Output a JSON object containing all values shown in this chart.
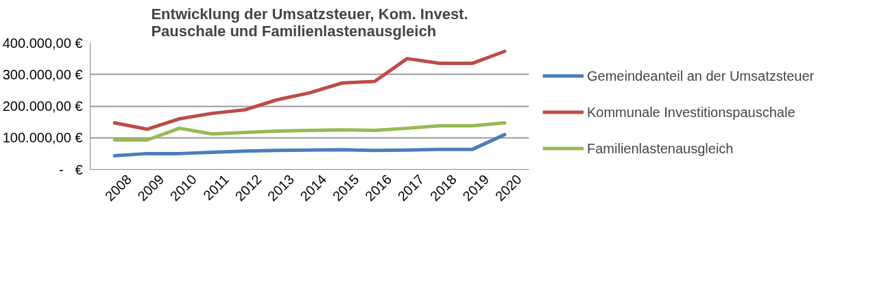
{
  "chart_data": {
    "type": "line",
    "title": "Entwicklung der Umsatzsteuer, Kom. Invest. Pauschale und Familienlastenausgleich",
    "categories": [
      "2008",
      "2009",
      "2010",
      "2011",
      "2012",
      "2013",
      "2014",
      "2015",
      "2016",
      "2017",
      "2018",
      "2019",
      "2020"
    ],
    "series": [
      {
        "name": "Gemeindeanteil an der Umsatzsteuer",
        "color": "#4a7ebb",
        "values": [
          43000,
          50000,
          50000,
          54000,
          58000,
          60000,
          61000,
          62000,
          60000,
          61000,
          63000,
          63000,
          110000
        ]
      },
      {
        "name": "Kommunale Investitionspauschale",
        "color": "#be4b48",
        "values": [
          147000,
          127000,
          160000,
          177000,
          188000,
          220000,
          242000,
          273000,
          278000,
          350000,
          335000,
          335000,
          373000
        ]
      },
      {
        "name": "Familienlastenausgleich",
        "color": "#98b954",
        "values": [
          93000,
          93000,
          130000,
          112000,
          117000,
          121000,
          123000,
          125000,
          123000,
          130000,
          138000,
          138000,
          147000
        ]
      }
    ],
    "ylim": [
      0,
      400000
    ],
    "yticks": [
      {
        "value": 0,
        "label": "-   €"
      },
      {
        "value": 100000,
        "label": "100.000,00 €"
      },
      {
        "value": 200000,
        "label": "200.000,00 €"
      },
      {
        "value": 300000,
        "label": "300.000,00 €"
      },
      {
        "value": 400000,
        "label": "400.000,00 €"
      }
    ],
    "grid": "y",
    "legend": "right",
    "marker": "none",
    "line_style": "solid"
  }
}
